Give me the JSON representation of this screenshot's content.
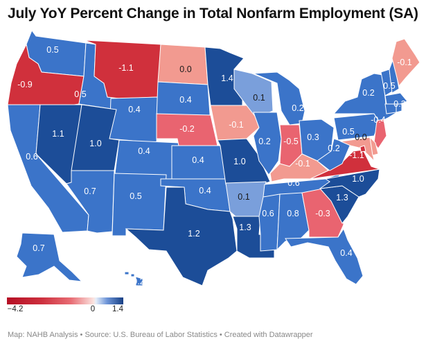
{
  "title": "July YoY Percent Change in Total Nonfarm Employment (SA)",
  "footer": "Map: NAHB Analysis • Source: U.S. Bureau of Labor Statistics • Created with Datawrapper",
  "colors": {
    "dark_blue": "#1c4d98",
    "blue": "#3b74c9",
    "light_blue": "#7a9fdb",
    "red": "#d0303c",
    "light_red": "#e96470",
    "pink": "#f29a90",
    "border": "#ffffff"
  },
  "legend": {
    "min_label": "−4.2",
    "mid_label": "0",
    "max_label": "1.4",
    "min": -4.2,
    "mid": 0,
    "max": 1.4
  },
  "chart_data": {
    "type": "choropleth",
    "title": "July YoY Percent Change in Total Nonfarm Employment (SA)",
    "regions": [
      {
        "id": "WA",
        "value": 0.5
      },
      {
        "id": "OR",
        "value": -0.9
      },
      {
        "id": "CA",
        "value": 0.6
      },
      {
        "id": "NV",
        "value": 1.1
      },
      {
        "id": "ID",
        "value": 0.5
      },
      {
        "id": "MT",
        "value": -1.1
      },
      {
        "id": "WY",
        "value": 0.4
      },
      {
        "id": "UT",
        "value": 1.0
      },
      {
        "id": "AZ",
        "value": 0.7
      },
      {
        "id": "CO",
        "value": 0.4
      },
      {
        "id": "NM",
        "value": 0.5
      },
      {
        "id": "ND",
        "value": 0.0
      },
      {
        "id": "SD",
        "value": 0.4
      },
      {
        "id": "NE",
        "value": -0.2
      },
      {
        "id": "KS",
        "value": 0.4
      },
      {
        "id": "OK",
        "value": 0.4
      },
      {
        "id": "TX",
        "value": 1.2
      },
      {
        "id": "MN",
        "value": 1.4
      },
      {
        "id": "IA",
        "value": -0.1
      },
      {
        "id": "MO",
        "value": 1.0
      },
      {
        "id": "AR",
        "value": 0.1
      },
      {
        "id": "LA",
        "value": 1.3
      },
      {
        "id": "WI",
        "value": 0.1
      },
      {
        "id": "IL",
        "value": 0.2
      },
      {
        "id": "MI",
        "value": 0.2
      },
      {
        "id": "IN",
        "value": -0.5
      },
      {
        "id": "OH",
        "value": 0.3
      },
      {
        "id": "KY",
        "value": -0.1
      },
      {
        "id": "TN",
        "value": 0.6
      },
      {
        "id": "MS",
        "value": 0.6
      },
      {
        "id": "AL",
        "value": 0.8
      },
      {
        "id": "GA",
        "value": -0.3
      },
      {
        "id": "FL",
        "value": 0.4
      },
      {
        "id": "SC",
        "value": 1.3
      },
      {
        "id": "NC",
        "value": 1.0
      },
      {
        "id": "VA",
        "value": -1.1
      },
      {
        "id": "WV",
        "value": 0.2
      },
      {
        "id": "PA",
        "value": 0.5
      },
      {
        "id": "NY",
        "value": 0.2
      },
      {
        "id": "VT",
        "value": 0.5
      },
      {
        "id": "NH",
        "value": 0.5
      },
      {
        "id": "ME",
        "value": -0.1
      },
      {
        "id": "MA",
        "value": 0.3
      },
      {
        "id": "NJ",
        "value": -0.4
      },
      {
        "id": "MD",
        "value": 0.0
      },
      {
        "id": "DE",
        "value": null
      },
      {
        "id": "CT",
        "value": null
      },
      {
        "id": "RI",
        "value": null
      },
      {
        "id": "DC",
        "value": null
      },
      {
        "id": "AK",
        "value": 0.7
      },
      {
        "id": "HI",
        "value": 0.2
      }
    ],
    "labels": [
      {
        "id": "WA",
        "text": "0.5"
      },
      {
        "id": "OR",
        "text": "-0.9"
      },
      {
        "id": "CA",
        "text": "0.6"
      },
      {
        "id": "NV",
        "text": "1.1"
      },
      {
        "id": "ID",
        "text": "0.5"
      },
      {
        "id": "MT",
        "text": "-1.1"
      },
      {
        "id": "WY",
        "text": "0.4"
      },
      {
        "id": "UT",
        "text": "1.0"
      },
      {
        "id": "AZ",
        "text": "0.7"
      },
      {
        "id": "CO",
        "text": "0.4"
      },
      {
        "id": "NM",
        "text": "0.5"
      },
      {
        "id": "ND",
        "text": "0.0"
      },
      {
        "id": "SD",
        "text": "0.4"
      },
      {
        "id": "NE",
        "text": "-0.2"
      },
      {
        "id": "KS",
        "text": "0.4"
      },
      {
        "id": "OK",
        "text": "0.4"
      },
      {
        "id": "TX",
        "text": "1.2"
      },
      {
        "id": "MN",
        "text": "1.4"
      },
      {
        "id": "IA",
        "text": "-0.1"
      },
      {
        "id": "MO",
        "text": "1.0"
      },
      {
        "id": "AR",
        "text": "0.1"
      },
      {
        "id": "LA",
        "text": "1.3"
      },
      {
        "id": "WI",
        "text": "0.1"
      },
      {
        "id": "IL",
        "text": "0.2"
      },
      {
        "id": "MI",
        "text": "0.2"
      },
      {
        "id": "IN",
        "text": "-0.5"
      },
      {
        "id": "OH",
        "text": "0.3"
      },
      {
        "id": "KY",
        "text": "-0.1"
      },
      {
        "id": "TN",
        "text": "0.6"
      },
      {
        "id": "MS",
        "text": "0.6"
      },
      {
        "id": "AL",
        "text": "0.8"
      },
      {
        "id": "GA",
        "text": "-0.3"
      },
      {
        "id": "FL",
        "text": "0.4"
      },
      {
        "id": "SC",
        "text": "1.3"
      },
      {
        "id": "NC",
        "text": "1.0"
      },
      {
        "id": "VA",
        "text": "-1.1"
      },
      {
        "id": "WV",
        "text": "0.2"
      },
      {
        "id": "PA",
        "text": "0.5"
      },
      {
        "id": "NY",
        "text": "0.2"
      },
      {
        "id": "VT",
        "text": "0.5"
      },
      {
        "id": "ME",
        "text": "-0.1"
      },
      {
        "id": "MA",
        "text": "0.3"
      },
      {
        "id": "NJ",
        "text": "-0.4"
      },
      {
        "id": "MD",
        "text": "0.0"
      },
      {
        "id": "AK",
        "text": "0.7"
      },
      {
        "id": "HI",
        "text": "0.2"
      }
    ]
  }
}
